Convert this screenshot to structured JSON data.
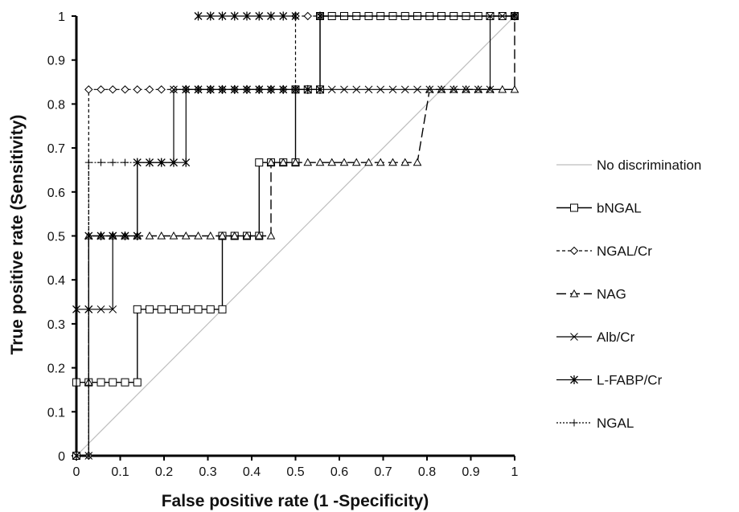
{
  "chart_data": {
    "type": "line",
    "title": "",
    "xlabel": "False positive rate (1 -Specificity)",
    "ylabel": "True positive rate (Sensitivity)",
    "xlim": [
      0,
      1
    ],
    "ylim": [
      0,
      1
    ],
    "x_ticks": [
      "0",
      "0.1",
      "0.2",
      "0.3",
      "0.4",
      "0.5",
      "0.6",
      "0.7",
      "0.8",
      "0.9",
      "1"
    ],
    "y_ticks": [
      "0",
      "0.1",
      "0.2",
      "0.3",
      "0.4",
      "0.5",
      "0.6",
      "0.7",
      "0.8",
      "0.9",
      "1"
    ],
    "grid": false,
    "legend_position": "right",
    "series": [
      {
        "name": "No discrimination",
        "color": "#bdbdbd",
        "marker": "none",
        "points": [
          [
            0,
            0
          ],
          [
            1,
            1
          ]
        ]
      },
      {
        "name": "bNGAL",
        "color": "#000000",
        "marker": "square",
        "points": [
          [
            0,
            0
          ],
          [
            0,
            0.167
          ],
          [
            0.028,
            0.167
          ],
          [
            0.056,
            0.167
          ],
          [
            0.083,
            0.167
          ],
          [
            0.111,
            0.167
          ],
          [
            0.139,
            0.167
          ],
          [
            0.139,
            0.333
          ],
          [
            0.167,
            0.333
          ],
          [
            0.194,
            0.333
          ],
          [
            0.222,
            0.333
          ],
          [
            0.25,
            0.333
          ],
          [
            0.278,
            0.333
          ],
          [
            0.306,
            0.333
          ],
          [
            0.333,
            0.333
          ],
          [
            0.333,
            0.5
          ],
          [
            0.361,
            0.5
          ],
          [
            0.389,
            0.5
          ],
          [
            0.417,
            0.5
          ],
          [
            0.417,
            0.667
          ],
          [
            0.444,
            0.667
          ],
          [
            0.472,
            0.667
          ],
          [
            0.5,
            0.667
          ],
          [
            0.5,
            0.833
          ],
          [
            0.528,
            0.833
          ],
          [
            0.556,
            0.833
          ],
          [
            0.556,
            1
          ],
          [
            0.583,
            1
          ],
          [
            0.611,
            1
          ],
          [
            0.639,
            1
          ],
          [
            0.667,
            1
          ],
          [
            0.694,
            1
          ],
          [
            0.722,
            1
          ],
          [
            0.75,
            1
          ],
          [
            0.778,
            1
          ],
          [
            0.806,
            1
          ],
          [
            0.833,
            1
          ],
          [
            0.861,
            1
          ],
          [
            0.889,
            1
          ],
          [
            0.917,
            1
          ],
          [
            0.944,
            1
          ],
          [
            0.972,
            1
          ],
          [
            1,
            1
          ]
        ]
      },
      {
        "name": "NGAL/Cr",
        "color": "#000000",
        "marker": "diamond",
        "points": [
          [
            0.028,
            0
          ],
          [
            0.028,
            0.833
          ],
          [
            0.056,
            0.833
          ],
          [
            0.083,
            0.833
          ],
          [
            0.111,
            0.833
          ],
          [
            0.139,
            0.833
          ],
          [
            0.167,
            0.833
          ],
          [
            0.194,
            0.833
          ],
          [
            0.222,
            0.833
          ],
          [
            0.25,
            0.833
          ],
          [
            0.278,
            0.833
          ],
          [
            0.306,
            0.833
          ],
          [
            0.333,
            0.833
          ],
          [
            0.361,
            0.833
          ],
          [
            0.389,
            0.833
          ],
          [
            0.417,
            0.833
          ],
          [
            0.444,
            0.833
          ],
          [
            0.472,
            0.833
          ],
          [
            0.5,
            0.833
          ],
          [
            0.5,
            1
          ],
          [
            0.528,
            1
          ],
          [
            0.556,
            1
          ],
          [
            1,
            1
          ]
        ]
      },
      {
        "name": "NAG",
        "color": "#000000",
        "marker": "triangle",
        "points": [
          [
            0.028,
            0.167
          ],
          [
            0.028,
            0.5
          ],
          [
            0.056,
            0.5
          ],
          [
            0.083,
            0.5
          ],
          [
            0.111,
            0.5
          ],
          [
            0.139,
            0.5
          ],
          [
            0.167,
            0.5
          ],
          [
            0.194,
            0.5
          ],
          [
            0.222,
            0.5
          ],
          [
            0.25,
            0.5
          ],
          [
            0.278,
            0.5
          ],
          [
            0.306,
            0.5
          ],
          [
            0.333,
            0.5
          ],
          [
            0.361,
            0.5
          ],
          [
            0.389,
            0.5
          ],
          [
            0.417,
            0.5
          ],
          [
            0.444,
            0.5
          ],
          [
            0.444,
            0.667
          ],
          [
            0.472,
            0.667
          ],
          [
            0.5,
            0.667
          ],
          [
            0.528,
            0.667
          ],
          [
            0.556,
            0.667
          ],
          [
            0.583,
            0.667
          ],
          [
            0.611,
            0.667
          ],
          [
            0.639,
            0.667
          ],
          [
            0.667,
            0.667
          ],
          [
            0.694,
            0.667
          ],
          [
            0.722,
            0.667
          ],
          [
            0.75,
            0.667
          ],
          [
            0.778,
            0.667
          ],
          [
            0.806,
            0.833
          ],
          [
            0.833,
            0.833
          ],
          [
            0.861,
            0.833
          ],
          [
            0.889,
            0.833
          ],
          [
            0.917,
            0.833
          ],
          [
            0.944,
            0.833
          ],
          [
            0.972,
            0.833
          ],
          [
            1,
            0.833
          ],
          [
            1,
            1
          ]
        ]
      },
      {
        "name": "Alb/Cr",
        "color": "#000000",
        "marker": "x",
        "points": [
          [
            0,
            0
          ],
          [
            0.028,
            0
          ],
          [
            0.028,
            0.333
          ],
          [
            0.056,
            0.333
          ],
          [
            0.083,
            0.333
          ],
          [
            0.083,
            0.5
          ],
          [
            0.111,
            0.5
          ],
          [
            0.139,
            0.5
          ],
          [
            0.139,
            0.667
          ],
          [
            0.167,
            0.667
          ],
          [
            0.194,
            0.667
          ],
          [
            0.222,
            0.667
          ],
          [
            0.222,
            0.833
          ],
          [
            0.25,
            0.833
          ],
          [
            0.278,
            0.833
          ],
          [
            0.306,
            0.833
          ],
          [
            0.333,
            0.833
          ],
          [
            0.361,
            0.833
          ],
          [
            0.389,
            0.833
          ],
          [
            0.417,
            0.833
          ],
          [
            0.444,
            0.833
          ],
          [
            0.472,
            0.833
          ],
          [
            0.5,
            0.833
          ],
          [
            0.528,
            0.833
          ],
          [
            0.556,
            0.833
          ],
          [
            0.583,
            0.833
          ],
          [
            0.611,
            0.833
          ],
          [
            0.639,
            0.833
          ],
          [
            0.667,
            0.833
          ],
          [
            0.694,
            0.833
          ],
          [
            0.722,
            0.833
          ],
          [
            0.75,
            0.833
          ],
          [
            0.778,
            0.833
          ],
          [
            0.806,
            0.833
          ],
          [
            0.833,
            0.833
          ],
          [
            0.861,
            0.833
          ],
          [
            0.889,
            0.833
          ],
          [
            0.917,
            0.833
          ],
          [
            0.944,
            0.833
          ],
          [
            0.944,
            1
          ],
          [
            0.972,
            1
          ],
          [
            1,
            1
          ]
        ]
      },
      {
        "name": "L-FABP/Cr",
        "color": "#000000",
        "marker": "star",
        "points": [
          [
            0,
            0
          ],
          [
            0,
            0.333
          ],
          [
            0.028,
            0.333
          ],
          [
            0.028,
            0.5
          ],
          [
            0.056,
            0.5
          ],
          [
            0.083,
            0.5
          ],
          [
            0.111,
            0.5
          ],
          [
            0.139,
            0.5
          ],
          [
            0.139,
            0.667
          ],
          [
            0.167,
            0.667
          ],
          [
            0.194,
            0.667
          ],
          [
            0.222,
            0.667
          ],
          [
            0.25,
            0.667
          ],
          [
            0.25,
            0.833
          ],
          [
            0.278,
            0.833
          ],
          [
            0.306,
            0.833
          ],
          [
            0.333,
            0.833
          ],
          [
            0.361,
            0.833
          ],
          [
            0.389,
            0.833
          ],
          [
            0.417,
            0.833
          ],
          [
            0.444,
            0.833
          ],
          [
            0.472,
            0.833
          ],
          [
            0.5,
            0.833
          ],
          [
            0.528,
            0.833
          ],
          [
            0.556,
            0.833
          ],
          [
            0.556,
            1
          ],
          [
            1,
            1
          ]
        ]
      },
      {
        "name": "NGAL",
        "color": "#000000",
        "marker": "plus",
        "points": [
          [
            0.028,
            0
          ],
          [
            0.028,
            0.667
          ],
          [
            0.056,
            0.667
          ],
          [
            0.083,
            0.667
          ],
          [
            0.111,
            0.667
          ],
          [
            0.139,
            0.667
          ],
          [
            0.167,
            0.667
          ],
          [
            0.194,
            0.667
          ],
          [
            0.222,
            0.667
          ]
        ]
      },
      {
        "name": "",
        "color": "#000000",
        "marker": "star",
        "points": [
          [
            0.278,
            1
          ],
          [
            0.306,
            1
          ],
          [
            0.333,
            1
          ],
          [
            0.361,
            1
          ],
          [
            0.389,
            1
          ],
          [
            0.417,
            1
          ],
          [
            0.444,
            1
          ],
          [
            0.472,
            1
          ],
          [
            0.5,
            1
          ]
        ]
      }
    ]
  }
}
